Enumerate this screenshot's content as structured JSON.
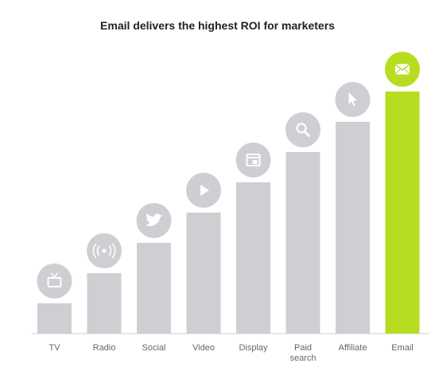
{
  "chart_data": {
    "type": "bar",
    "title": "Email delivers the highest ROI for marketers",
    "categories": [
      "TV",
      "Radio",
      "Social",
      "Video",
      "Display",
      "Paid search",
      "Affiliate",
      "Email"
    ],
    "category_lines": [
      [
        "TV"
      ],
      [
        "Radio"
      ],
      [
        "Social"
      ],
      [
        "Video"
      ],
      [
        "Display"
      ],
      [
        "Paid",
        "search"
      ],
      [
        "Affiliate"
      ],
      [
        "Email"
      ]
    ],
    "values": [
      1,
      2,
      3,
      4,
      5,
      6,
      7,
      8
    ],
    "icons": [
      "tv-icon",
      "radio-icon",
      "twitter-bird-icon",
      "play-icon",
      "display-icon",
      "search-icon",
      "cursor-icon",
      "envelope-icon"
    ],
    "highlight_index": 7,
    "xlabel": "",
    "ylabel": "",
    "ylim": [
      0,
      8
    ],
    "grid": false,
    "legend": "none",
    "colors": {
      "bar": "#cfcfd3",
      "highlight": "#b6dd1f",
      "icon_circle": "#cfcfd3",
      "icon_glyph": "#ffffff",
      "baseline": "#cfcfd3"
    }
  }
}
